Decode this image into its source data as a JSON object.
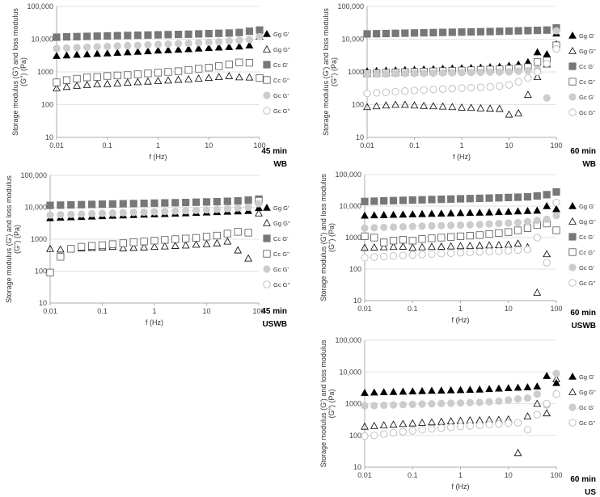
{
  "chart_data": [
    {
      "type": "scatter",
      "caption_time": "45 min",
      "caption_method": "WB",
      "xlabel": "f (Hz)",
      "ylabel": "Storage modulus (G') and loss modulus (G'') (Pa)",
      "xscale": "log",
      "yscale": "log",
      "xlim": [
        0.01,
        100
      ],
      "ylim": [
        10,
        100000
      ],
      "x_ticks": [
        "0.01",
        "0.1",
        "1",
        "10",
        "100"
      ],
      "y_ticks": [
        "10",
        "100",
        "1000",
        "10,000",
        "100,000"
      ],
      "legend_position": "right",
      "x": [
        0.01,
        0.0158,
        0.0251,
        0.0398,
        0.0631,
        0.1,
        0.158,
        0.251,
        0.398,
        0.631,
        1,
        1.58,
        2.51,
        3.98,
        6.31,
        10,
        15.8,
        25.1,
        39.8,
        63.1,
        100
      ],
      "series": [
        {
          "name": "Gg G'",
          "marker": "triangle-filled",
          "values": [
            3100,
            3200,
            3350,
            3450,
            3600,
            3700,
            3850,
            4000,
            4150,
            4300,
            4500,
            4650,
            4800,
            5000,
            5200,
            5400,
            5600,
            5800,
            6000,
            6500,
            12000
          ]
        },
        {
          "name": "Gg G''",
          "marker": "triangle-open",
          "values": [
            320,
            350,
            380,
            400,
            420,
            430,
            450,
            470,
            490,
            510,
            530,
            550,
            580,
            600,
            630,
            660,
            700,
            750,
            690,
            680,
            650
          ]
        },
        {
          "name": "Cc G'",
          "marker": "square-filled",
          "values": [
            11500,
            11800,
            12000,
            12200,
            12400,
            12600,
            12800,
            13000,
            13200,
            13400,
            13600,
            13800,
            14000,
            14200,
            14500,
            14800,
            15100,
            15400,
            16000,
            17500,
            19000
          ]
        },
        {
          "name": "Cc G''",
          "marker": "square-open",
          "values": [
            480,
            560,
            620,
            680,
            700,
            750,
            780,
            800,
            850,
            900,
            950,
            1000,
            1050,
            1150,
            1250,
            1350,
            1500,
            1700,
            1950,
            1900,
            650
          ]
        },
        {
          "name": "Gc G'",
          "marker": "circle-filled",
          "values": [
            5200,
            5400,
            5550,
            5700,
            5850,
            6000,
            6200,
            6350,
            6500,
            6700,
            6900,
            7100,
            7300,
            7500,
            7800,
            8100,
            8400,
            8800,
            9200,
            9800,
            12000
          ]
        },
        {
          "name": "Gc G''",
          "marker": "circle-open",
          "values": []
        }
      ]
    },
    {
      "type": "scatter",
      "caption_time": "60 min",
      "caption_method": "WB",
      "xlabel": "f (Hz)",
      "ylabel": "Storage modulus (G') and loss modulus (G'') (Pa)",
      "xscale": "log",
      "yscale": "log",
      "xlim": [
        0.01,
        100
      ],
      "ylim": [
        10,
        100000
      ],
      "x_ticks": [
        "0.01",
        "0.1",
        "1",
        "10",
        "100"
      ],
      "y_ticks": [
        "10",
        "100",
        "1000",
        "10,000",
        "100,000"
      ],
      "legend_position": "right",
      "x": [
        0.01,
        0.0158,
        0.0251,
        0.0398,
        0.0631,
        0.1,
        0.158,
        0.251,
        0.398,
        0.631,
        1,
        1.58,
        2.51,
        3.98,
        6.31,
        10,
        15.8,
        25.1,
        39.8,
        63.1,
        100
      ],
      "series": [
        {
          "name": "Gg G'",
          "marker": "triangle-filled",
          "values": [
            1050,
            1080,
            1100,
            1120,
            1150,
            1170,
            1200,
            1220,
            1250,
            1280,
            1300,
            1330,
            1360,
            1400,
            1450,
            1550,
            1700,
            2000,
            4000,
            3500,
            15000
          ]
        },
        {
          "name": "Gg G''",
          "marker": "triangle-open",
          "values": [
            85,
            90,
            95,
            100,
            100,
            95,
            92,
            90,
            88,
            85,
            82,
            80,
            78,
            76,
            75,
            50,
            55,
            200,
            700,
            1700,
            7000
          ]
        },
        {
          "name": "Cc G'",
          "marker": "square-filled",
          "values": [
            14500,
            14700,
            14900,
            15100,
            15300,
            15500,
            15700,
            15900,
            16100,
            16300,
            16500,
            16700,
            16900,
            17100,
            17400,
            17700,
            18000,
            18300,
            18600,
            19000,
            22000
          ]
        },
        {
          "name": "Cc G''",
          "marker": "square-open",
          "values": [
            900,
            920,
            940,
            960,
            980,
            1000,
            1020,
            1040,
            1060,
            1080,
            1100,
            1120,
            1150,
            1180,
            1200,
            1250,
            1300,
            1400,
            2000,
            2200,
            6500
          ]
        },
        {
          "name": "Gc G'",
          "marker": "circle-filled",
          "values": [
            850,
            860,
            870,
            880,
            890,
            900,
            910,
            920,
            930,
            940,
            950,
            960,
            970,
            980,
            990,
            1000,
            1050,
            1100,
            1200,
            160,
            18000
          ]
        },
        {
          "name": "Gc G''",
          "marker": "circle-open",
          "values": [
            220,
            230,
            240,
            250,
            260,
            270,
            280,
            290,
            300,
            310,
            320,
            330,
            340,
            350,
            370,
            400,
            500,
            650,
            1000,
            1800,
            5000
          ]
        }
      ]
    },
    {
      "type": "scatter",
      "caption_time": "45 min",
      "caption_method": "USWB",
      "xlabel": "f (Hz)",
      "ylabel": "Storage modulus (G') and loss modulus (G'') (Pa)",
      "xscale": "log",
      "yscale": "log",
      "xlim": [
        0.01,
        100
      ],
      "ylim": [
        10,
        100000
      ],
      "x_ticks": [
        "0.01",
        "0.1",
        "1",
        "10",
        "100"
      ],
      "y_ticks": [
        "10",
        "100",
        "1000",
        "10,000",
        "100,000"
      ],
      "legend_position": "right",
      "x": [
        0.01,
        0.0158,
        0.0251,
        0.0398,
        0.0631,
        0.1,
        0.158,
        0.251,
        0.398,
        0.631,
        1,
        1.58,
        2.51,
        3.98,
        6.31,
        10,
        15.8,
        25.1,
        39.8,
        63.1,
        100
      ],
      "series": [
        {
          "name": "Gg G'",
          "marker": "triangle-filled",
          "values": [
            4600,
            4750,
            4900,
            5000,
            5150,
            5300,
            5450,
            5600,
            5750,
            5900,
            6050,
            6200,
            6350,
            6500,
            6700,
            6900,
            7100,
            7300,
            7500,
            7700,
            9500
          ]
        },
        {
          "name": "Gg G''",
          "marker": "triangle-open",
          "values": [
            500,
            480,
            500,
            520,
            540,
            560,
            580,
            520,
            540,
            560,
            580,
            600,
            620,
            640,
            680,
            700,
            750,
            850,
            450,
            250,
            6500
          ]
        },
        {
          "name": "Cc G'",
          "marker": "square-filled",
          "values": [
            11500,
            11700,
            11900,
            12100,
            12300,
            12500,
            12700,
            12900,
            13100,
            13300,
            13500,
            13700,
            13900,
            14100,
            14400,
            14700,
            15000,
            15400,
            15800,
            16800,
            18000
          ]
        },
        {
          "name": "Cc G''",
          "marker": "square-open",
          "values": [
            90,
            280,
            500,
            580,
            620,
            650,
            700,
            750,
            800,
            850,
            900,
            950,
            1000,
            1050,
            1100,
            1200,
            1300,
            1500,
            1700,
            1600,
            16000
          ]
        },
        {
          "name": "Gc G'",
          "marker": "circle-filled",
          "values": [
            5700,
            5850,
            6000,
            6150,
            6300,
            6450,
            6600,
            6750,
            6900,
            7050,
            7200,
            7400,
            7600,
            7800,
            8000,
            8300,
            8600,
            9000,
            9500,
            10000,
            13000
          ]
        },
        {
          "name": "Gc G''",
          "marker": "circle-open",
          "values": []
        }
      ]
    },
    {
      "type": "scatter",
      "caption_time": "60 min",
      "caption_method": "USWB",
      "xlabel": "f (Hz)",
      "ylabel": "Storage modulus (G') and loss modulus (G'') (Pa)",
      "xscale": "log",
      "yscale": "log",
      "xlim": [
        0.01,
        100
      ],
      "ylim": [
        10,
        100000
      ],
      "x_ticks": [
        "0.01",
        "0.1",
        "1",
        "10",
        "100"
      ],
      "y_ticks": [
        "10",
        "100",
        "1000",
        "10,000",
        "100,000"
      ],
      "legend_position": "right",
      "x": [
        0.01,
        0.0158,
        0.0251,
        0.0398,
        0.0631,
        0.1,
        0.158,
        0.251,
        0.398,
        0.631,
        1,
        1.58,
        2.51,
        3.98,
        6.31,
        10,
        15.8,
        25.1,
        39.8,
        63.1,
        100
      ],
      "series": [
        {
          "name": "Gg G'",
          "marker": "triangle-filled",
          "values": [
            5000,
            5100,
            5200,
            5300,
            5400,
            5500,
            5600,
            5700,
            5800,
            5900,
            6000,
            6100,
            6200,
            6300,
            6450,
            6600,
            6800,
            7000,
            7200,
            10000,
            8000
          ]
        },
        {
          "name": "Gg G''",
          "marker": "triangle-open",
          "values": [
            480,
            490,
            500,
            510,
            520,
            480,
            500,
            510,
            520,
            530,
            540,
            550,
            560,
            570,
            580,
            600,
            650,
            500,
            18,
            300,
            8000
          ]
        },
        {
          "name": "Cc G'",
          "marker": "square-filled",
          "values": [
            14000,
            14300,
            14600,
            14900,
            15200,
            15500,
            15800,
            16100,
            16400,
            16700,
            17000,
            17300,
            17600,
            17900,
            18300,
            18700,
            19100,
            19600,
            21000,
            23000,
            28000
          ]
        },
        {
          "name": "Cc G''",
          "marker": "square-open",
          "values": [
            1100,
            1000,
            700,
            800,
            850,
            800,
            900,
            950,
            1000,
            1050,
            1100,
            1150,
            1200,
            1300,
            1400,
            1500,
            1700,
            2000,
            2500,
            2800,
            1700
          ]
        },
        {
          "name": "Gc G'",
          "marker": "circle-filled",
          "values": [
            2000,
            2050,
            2100,
            2150,
            2200,
            2250,
            2300,
            2350,
            2400,
            2450,
            2500,
            2550,
            2600,
            2700,
            2800,
            2900,
            3000,
            3200,
            3500,
            3800,
            5000
          ]
        },
        {
          "name": "Gc G''",
          "marker": "circle-open",
          "values": [
            230,
            240,
            250,
            260,
            270,
            280,
            290,
            300,
            310,
            320,
            330,
            340,
            350,
            360,
            370,
            380,
            400,
            420,
            1000,
            160,
            13000
          ]
        }
      ]
    },
    {
      "type": "scatter",
      "caption_time": "60 min",
      "caption_method": "US",
      "xlabel": "f (Hz)",
      "ylabel": "Storage modulus (G') and loss modulus (G'') (Pa)",
      "xscale": "log",
      "yscale": "log",
      "xlim": [
        0.01,
        100
      ],
      "ylim": [
        10,
        100000
      ],
      "x_ticks": [
        "0.01",
        "0.1",
        "1",
        "10",
        "100"
      ],
      "y_ticks": [
        "10",
        "100",
        "1000",
        "10,000",
        "100,000"
      ],
      "legend_position": "right",
      "x": [
        0.01,
        0.0158,
        0.0251,
        0.0398,
        0.0631,
        0.1,
        0.158,
        0.251,
        0.398,
        0.631,
        1,
        1.58,
        2.51,
        3.98,
        6.31,
        10,
        15.8,
        25.1,
        39.8,
        63.1,
        100
      ],
      "series": [
        {
          "name": "Gg G'",
          "marker": "triangle-filled",
          "values": [
            2200,
            2250,
            2300,
            2350,
            2400,
            2450,
            2500,
            2550,
            2600,
            2650,
            2700,
            2750,
            2800,
            2900,
            3000,
            3100,
            3200,
            3300,
            3500,
            7500,
            4500
          ]
        },
        {
          "name": "Gg G''",
          "marker": "triangle-open",
          "values": [
            190,
            200,
            210,
            220,
            230,
            240,
            250,
            260,
            270,
            280,
            290,
            300,
            300,
            310,
            310,
            320,
            28,
            400,
            1000,
            500,
            6000
          ]
        },
        {
          "name": "Gc G'",
          "marker": "circle-filled",
          "values": [
            850,
            870,
            890,
            910,
            930,
            950,
            970,
            990,
            1010,
            1030,
            1050,
            1080,
            1100,
            1150,
            1200,
            1300,
            1400,
            1500,
            2000,
            900,
            9000
          ]
        },
        {
          "name": "Gc G''",
          "marker": "circle-open",
          "values": [
            95,
            100,
            110,
            120,
            130,
            140,
            150,
            160,
            170,
            180,
            190,
            200,
            210,
            220,
            230,
            240,
            250,
            150,
            450,
            1000,
            2000
          ]
        }
      ]
    }
  ]
}
